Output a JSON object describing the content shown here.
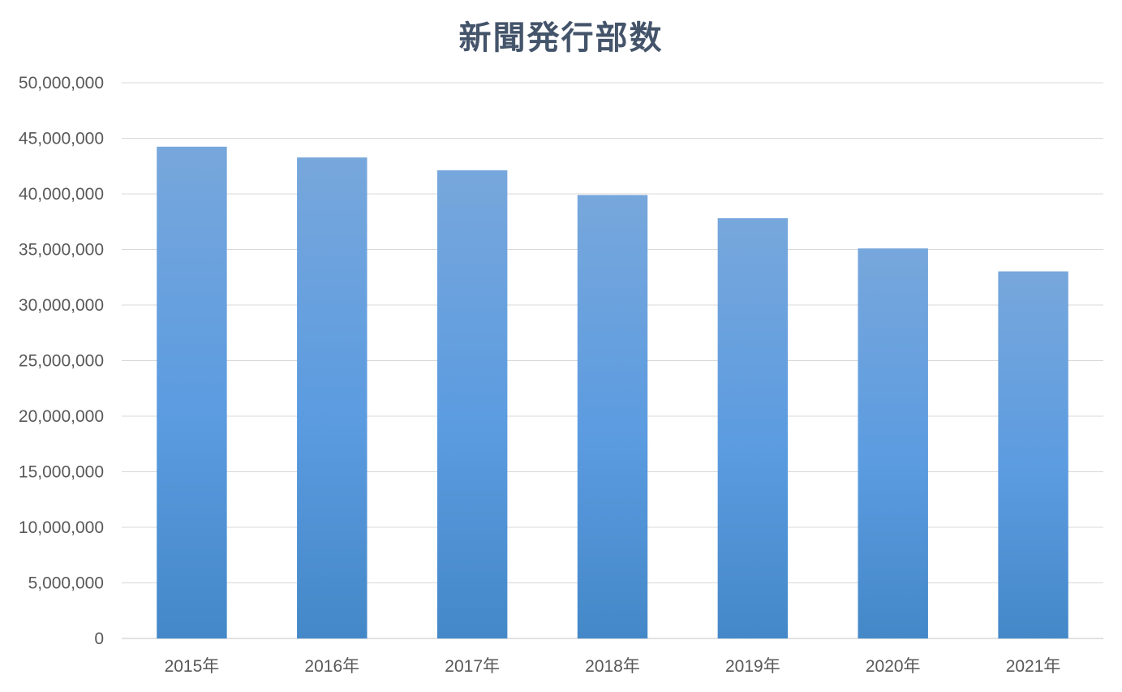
{
  "chart_data": {
    "type": "bar",
    "title": "新聞発行部数",
    "xlabel": "",
    "ylabel": "",
    "categories": [
      "2015年",
      "2016年",
      "2017年",
      "2018年",
      "2019年",
      "2020年",
      "2021年"
    ],
    "series": [
      {
        "values": [
          44247000,
          43276000,
          42128000,
          39902000,
          37811000,
          35092000,
          33027000
        ]
      }
    ],
    "ylim": [
      0,
      50000000
    ],
    "yticks": [
      "0",
      "5,000,000",
      "10,000,000",
      "15,000,000",
      "20,000,000",
      "25,000,000",
      "30,000,000",
      "35,000,000",
      "40,000,000",
      "45,000,000",
      "50,000,000"
    ],
    "grid": true,
    "legend": "none",
    "colors": {
      "bar_top": "#77a7dc",
      "bar_mid": "#5b9be0",
      "bar_bottom": "#4488c8",
      "grid": "#d9d9d9",
      "tick_text": "#595959",
      "title": "#44546a"
    }
  }
}
